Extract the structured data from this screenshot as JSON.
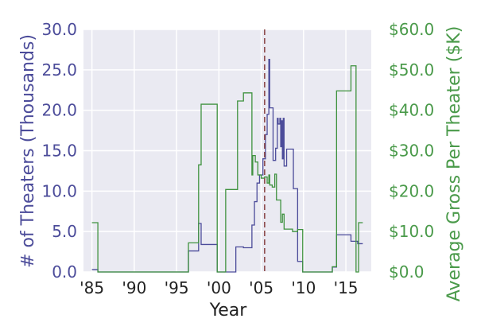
{
  "chart_data": {
    "type": "line",
    "xlabel": "Year",
    "ylabel_left": "# of Theaters (Thousands)",
    "ylabel_right": "Average Gross Per Theater ($K)",
    "xlim": [
      1984,
      2018
    ],
    "ylim_left": [
      0,
      30
    ],
    "ylim_right": [
      0,
      60
    ],
    "x_ticks": [
      1985,
      1990,
      1995,
      2000,
      2005,
      2010,
      2015
    ],
    "x_tick_labels": [
      "'85",
      "'90",
      "'95",
      "'00",
      "'05",
      "'10",
      "'15"
    ],
    "y_left_ticks": [
      0,
      5,
      10,
      15,
      20,
      25,
      30
    ],
    "y_left_tick_labels": [
      "0.0",
      "5.0",
      "10.0",
      "15.0",
      "20.0",
      "25.0",
      "30.0"
    ],
    "y_right_ticks": [
      0,
      10,
      20,
      30,
      40,
      50,
      60
    ],
    "y_right_tick_labels": [
      "$0.0",
      "$10.0",
      "$20.0",
      "$30.0",
      "$40.0",
      "$50.0",
      "$60.0"
    ],
    "grid": true,
    "vline": {
      "x": 2005.4,
      "style": "dashed",
      "color": "#8c4a4a"
    },
    "colors": {
      "left": "#4c4c9a",
      "right": "#3f923f",
      "background": "#eaeaf2",
      "grid": "#ffffff",
      "tick_left": "#4c4c9a",
      "tick_right": "#4a9a4a",
      "text": "#222222"
    },
    "series": [
      {
        "axis": "left",
        "points": [
          [
            1985,
            0.3
          ],
          [
            1985.7,
            0.3
          ],
          [
            1985.7,
            0
          ],
          [
            1996.4,
            0
          ],
          [
            1996.4,
            2.6
          ],
          [
            1997.6,
            2.6
          ],
          [
            1997.6,
            6
          ],
          [
            1997.9,
            6
          ],
          [
            1997.9,
            3.4
          ],
          [
            1999.8,
            3.4
          ],
          [
            1999.8,
            0
          ],
          [
            2002,
            0
          ],
          [
            2002,
            3.1
          ],
          [
            2002.9,
            3.1
          ],
          [
            2002.9,
            3.0
          ],
          [
            2003.9,
            3.0
          ],
          [
            2003.9,
            5.8
          ],
          [
            2004.2,
            5.8
          ],
          [
            2004.2,
            8.7
          ],
          [
            2004.5,
            8.7
          ],
          [
            2004.5,
            11
          ],
          [
            2004.8,
            11
          ],
          [
            2004.8,
            12
          ],
          [
            2005.2,
            12
          ],
          [
            2005.2,
            14
          ],
          [
            2005.5,
            14
          ],
          [
            2005.5,
            17
          ],
          [
            2005.7,
            17
          ],
          [
            2005.7,
            19.5
          ],
          [
            2005.9,
            19.5
          ],
          [
            2005.9,
            26.3
          ],
          [
            2006.0,
            26.3
          ],
          [
            2006.0,
            20.3
          ],
          [
            2006.4,
            20.3
          ],
          [
            2006.4,
            13.8
          ],
          [
            2006.7,
            13.8
          ],
          [
            2006.7,
            15.3
          ],
          [
            2006.9,
            15.3
          ],
          [
            2006.9,
            19
          ],
          [
            2007.0,
            19
          ],
          [
            2007.0,
            18.3
          ],
          [
            2007.2,
            18.3
          ],
          [
            2007.2,
            19
          ],
          [
            2007.3,
            19
          ],
          [
            2007.3,
            15.5
          ],
          [
            2007.4,
            15.5
          ],
          [
            2007.4,
            18.7
          ],
          [
            2007.5,
            18.7
          ],
          [
            2007.5,
            14
          ],
          [
            2007.6,
            14
          ],
          [
            2007.6,
            19
          ],
          [
            2007.7,
            19
          ],
          [
            2007.7,
            13.1
          ],
          [
            2008.0,
            13.1
          ],
          [
            2008.0,
            15.2
          ],
          [
            2008.8,
            15.2
          ],
          [
            2008.8,
            10.3
          ],
          [
            2009.3,
            10.3
          ],
          [
            2009.3,
            1.3
          ],
          [
            2009.9,
            1.3
          ],
          [
            2009.9,
            0
          ],
          [
            2013.4,
            0
          ],
          [
            2013.4,
            0.6
          ],
          [
            2013.9,
            0.6
          ],
          [
            2013.9,
            4.6
          ],
          [
            2015.6,
            4.6
          ],
          [
            2015.6,
            3.8
          ],
          [
            2016.4,
            3.8
          ],
          [
            2016.4,
            3.5
          ],
          [
            2017,
            3.5
          ]
        ]
      },
      {
        "axis": "right",
        "points": [
          [
            1985,
            12.2
          ],
          [
            1985.7,
            12.2
          ],
          [
            1985.7,
            0
          ],
          [
            1996.4,
            0
          ],
          [
            1996.4,
            7.2
          ],
          [
            1997.6,
            7.2
          ],
          [
            1997.6,
            26.5
          ],
          [
            1997.9,
            26.5
          ],
          [
            1997.9,
            41.5
          ],
          [
            1999.8,
            41.5
          ],
          [
            1999.8,
            0
          ],
          [
            2000.8,
            0
          ],
          [
            2000.8,
            20.4
          ],
          [
            2002.2,
            20.4
          ],
          [
            2002.2,
            42.3
          ],
          [
            2002.9,
            42.3
          ],
          [
            2002.9,
            44.3
          ],
          [
            2003.9,
            44.3
          ],
          [
            2003.9,
            24
          ],
          [
            2004.0,
            24
          ],
          [
            2004.0,
            28.8
          ],
          [
            2004.3,
            28.8
          ],
          [
            2004.3,
            27.2
          ],
          [
            2004.6,
            27.2
          ],
          [
            2004.6,
            24
          ],
          [
            2005.0,
            24
          ],
          [
            2005.0,
            23.2
          ],
          [
            2005.4,
            23.2
          ],
          [
            2005.4,
            23.5
          ],
          [
            2005.7,
            23.5
          ],
          [
            2005.7,
            22
          ],
          [
            2005.9,
            22
          ],
          [
            2005.9,
            24
          ],
          [
            2006.0,
            24
          ],
          [
            2006.0,
            21.5
          ],
          [
            2006.3,
            21.5
          ],
          [
            2006.3,
            21
          ],
          [
            2006.6,
            21
          ],
          [
            2006.6,
            24.2
          ],
          [
            2006.8,
            24.2
          ],
          [
            2006.8,
            17.8
          ],
          [
            2007.3,
            17.8
          ],
          [
            2007.3,
            12.3
          ],
          [
            2007.5,
            12.3
          ],
          [
            2007.5,
            14.3
          ],
          [
            2007.7,
            14.3
          ],
          [
            2007.7,
            10.6
          ],
          [
            2008.0,
            10.6
          ],
          [
            2008.0,
            10.6
          ],
          [
            2008.7,
            10.6
          ],
          [
            2008.7,
            10.0
          ],
          [
            2009.3,
            10.0
          ],
          [
            2009.3,
            10.5
          ],
          [
            2009.9,
            10.5
          ],
          [
            2009.9,
            0
          ],
          [
            2013.4,
            0
          ],
          [
            2013.4,
            1.3
          ],
          [
            2013.9,
            1.3
          ],
          [
            2013.9,
            44.8
          ],
          [
            2015.6,
            44.8
          ],
          [
            2015.6,
            51
          ],
          [
            2016.2,
            51
          ],
          [
            2016.2,
            0
          ],
          [
            2016.5,
            0
          ],
          [
            2016.5,
            12.2
          ],
          [
            2017,
            12.2
          ]
        ]
      }
    ]
  }
}
